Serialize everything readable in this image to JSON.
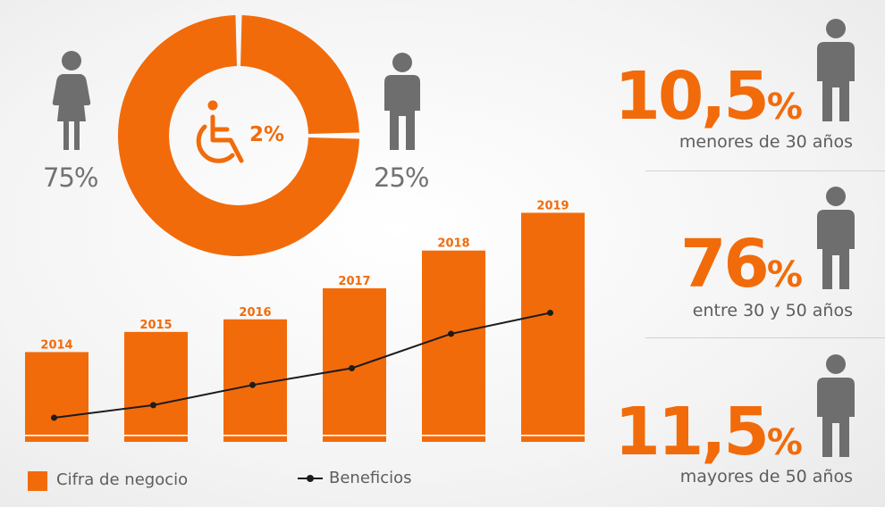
{
  "donut": {
    "center_label": "2%",
    "women_pct": "75%",
    "men_pct": "25%"
  },
  "age_groups": [
    {
      "value": "10,5",
      "unit": "%",
      "label": "menores de 30 años"
    },
    {
      "value": "76",
      "unit": "%",
      "label": "entre 30 y 50 años"
    },
    {
      "value": "11,5",
      "unit": "%",
      "label": "mayores de 50 años"
    }
  ],
  "legend": {
    "bars": "Cifra de negocio",
    "line": "Beneficios"
  },
  "colors": {
    "accent": "#f26b0a",
    "grey": "#727272",
    "icon": "#6e6e6e"
  },
  "chart_data": [
    {
      "type": "pie",
      "labels": [
        "",
        ""
      ],
      "values": [
        75,
        25
      ]
    },
    {
      "type": "bar",
      "categories": [
        "2014",
        "2015",
        "2016",
        "2017",
        "2018",
        "2019"
      ],
      "series": [
        {
          "name": "Cifra de negocio",
          "type": "bar",
          "values": [
            107,
            131,
            146,
            183,
            228,
            273
          ]
        },
        {
          "name": "Beneficios",
          "type": "line",
          "values": [
            16,
            31,
            55,
            75,
            116,
            141
          ]
        }
      ],
      "grid": false,
      "legend": "bottom"
    }
  ]
}
